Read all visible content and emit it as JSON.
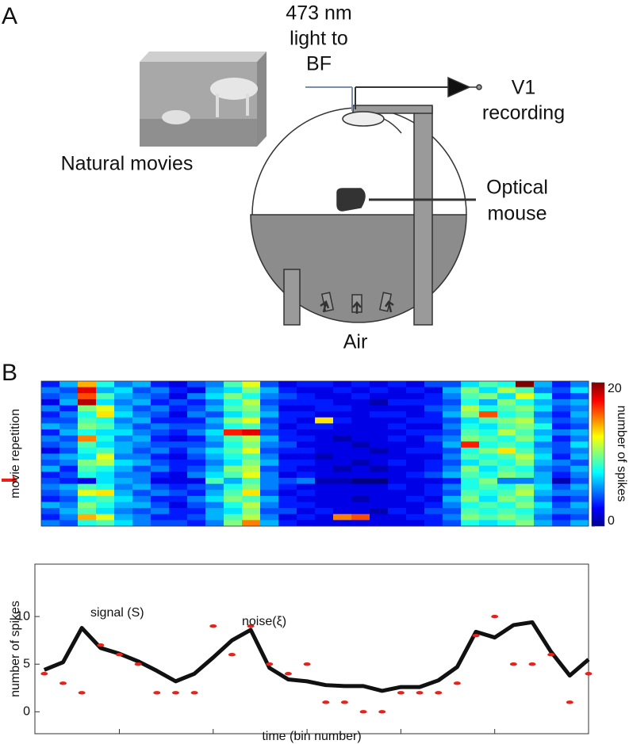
{
  "figure": {
    "panel_a": "A",
    "panel_b": "B"
  },
  "diagram": {
    "light_label": [
      "473 nm",
      "light to",
      "BF"
    ],
    "recording_label": [
      "V1",
      "recording"
    ],
    "movie_label": "Natural movies",
    "mouse_label": [
      "Optical",
      "mouse"
    ],
    "air_label": "Air"
  },
  "chart_data": [
    {
      "type": "heatmap",
      "ylabel": "movie repetition",
      "colorbar_label": "number of spikes",
      "colormap": "jet",
      "zlim": [
        0,
        20
      ],
      "zticks": [
        0,
        20
      ],
      "z": [
        [
          3,
          6,
          14,
          8,
          5,
          6,
          3,
          2,
          4,
          5,
          9,
          12,
          4,
          2,
          3,
          3,
          2,
          3,
          2,
          3,
          2,
          4,
          4,
          7,
          9,
          8,
          20,
          6,
          3,
          5
        ],
        [
          5,
          4,
          18,
          6,
          7,
          4,
          5,
          3,
          2,
          6,
          7,
          10,
          6,
          3,
          2,
          2,
          3,
          2,
          3,
          2,
          3,
          2,
          6,
          10,
          7,
          11,
          9,
          5,
          4,
          7
        ],
        [
          4,
          5,
          16,
          9,
          6,
          5,
          4,
          2,
          5,
          7,
          10,
          8,
          5,
          4,
          3,
          2,
          2,
          3,
          2,
          2,
          2,
          3,
          5,
          9,
          10,
          7,
          12,
          8,
          3,
          4
        ],
        [
          2,
          6,
          19,
          7,
          5,
          6,
          3,
          4,
          3,
          5,
          8,
          11,
          4,
          3,
          3,
          3,
          2,
          2,
          1,
          3,
          3,
          3,
          4,
          8,
          6,
          10,
          8,
          6,
          5,
          6
        ],
        [
          5,
          3,
          10,
          12,
          6,
          4,
          5,
          3,
          4,
          6,
          9,
          10,
          5,
          2,
          2,
          3,
          3,
          2,
          2,
          2,
          2,
          4,
          5,
          11,
          8,
          9,
          10,
          7,
          4,
          5
        ],
        [
          3,
          5,
          8,
          13,
          7,
          5,
          4,
          2,
          5,
          4,
          7,
          9,
          6,
          3,
          3,
          2,
          2,
          2,
          3,
          3,
          2,
          3,
          6,
          10,
          16,
          8,
          9,
          5,
          3,
          6
        ],
        [
          4,
          4,
          9,
          8,
          5,
          6,
          3,
          3,
          3,
          6,
          10,
          12,
          4,
          3,
          2,
          13,
          3,
          2,
          2,
          2,
          3,
          3,
          4,
          7,
          9,
          10,
          11,
          6,
          4,
          5
        ],
        [
          6,
          5,
          10,
          9,
          6,
          4,
          5,
          4,
          4,
          5,
          8,
          9,
          5,
          2,
          3,
          3,
          2,
          2,
          2,
          3,
          2,
          2,
          5,
          8,
          7,
          9,
          10,
          8,
          3,
          4
        ],
        [
          3,
          6,
          8,
          7,
          7,
          5,
          4,
          3,
          5,
          7,
          17,
          18,
          4,
          3,
          2,
          2,
          2,
          2,
          2,
          2,
          3,
          3,
          4,
          9,
          8,
          11,
          9,
          6,
          5,
          6
        ],
        [
          5,
          4,
          15,
          8,
          5,
          6,
          3,
          2,
          3,
          6,
          9,
          11,
          6,
          3,
          3,
          2,
          1,
          2,
          2,
          3,
          2,
          4,
          5,
          10,
          9,
          8,
          10,
          7,
          3,
          5
        ],
        [
          4,
          5,
          9,
          7,
          6,
          5,
          4,
          4,
          4,
          5,
          8,
          10,
          5,
          4,
          2,
          2,
          2,
          1,
          2,
          2,
          2,
          3,
          6,
          17,
          8,
          9,
          8,
          5,
          4,
          7
        ],
        [
          2,
          4,
          8,
          9,
          6,
          4,
          5,
          3,
          5,
          7,
          9,
          12,
          4,
          3,
          3,
          2,
          2,
          2,
          1,
          2,
          3,
          3,
          4,
          8,
          10,
          13,
          9,
          6,
          4,
          5
        ],
        [
          5,
          6,
          7,
          12,
          5,
          5,
          3,
          2,
          4,
          6,
          8,
          9,
          5,
          2,
          2,
          1,
          2,
          2,
          2,
          2,
          2,
          2,
          5,
          9,
          8,
          9,
          11,
          7,
          3,
          6
        ],
        [
          4,
          5,
          10,
          11,
          7,
          6,
          4,
          3,
          3,
          5,
          7,
          10,
          6,
          3,
          3,
          2,
          2,
          1,
          2,
          3,
          2,
          3,
          4,
          7,
          9,
          8,
          10,
          6,
          5,
          4
        ],
        [
          6,
          3,
          9,
          8,
          6,
          4,
          5,
          3,
          4,
          6,
          10,
          11,
          4,
          3,
          2,
          2,
          1,
          2,
          1,
          2,
          2,
          3,
          5,
          10,
          7,
          9,
          8,
          5,
          4,
          6
        ],
        [
          3,
          4,
          8,
          7,
          5,
          5,
          3,
          2,
          5,
          7,
          9,
          12,
          5,
          2,
          3,
          2,
          2,
          2,
          2,
          2,
          3,
          4,
          6,
          9,
          8,
          10,
          9,
          6,
          3,
          5
        ],
        [
          4,
          3,
          2,
          7,
          6,
          5,
          2,
          2,
          2,
          9,
          6,
          9,
          5,
          4,
          5,
          1,
          1,
          0,
          0,
          2,
          2,
          2,
          3,
          8,
          10,
          5,
          5,
          6,
          1,
          4
        ],
        [
          5,
          6,
          9,
          8,
          5,
          6,
          4,
          3,
          4,
          5,
          8,
          10,
          5,
          3,
          2,
          2,
          2,
          2,
          2,
          3,
          2,
          3,
          5,
          8,
          9,
          8,
          10,
          7,
          4,
          6
        ],
        [
          4,
          5,
          12,
          13,
          6,
          4,
          5,
          4,
          3,
          6,
          9,
          13,
          4,
          2,
          3,
          2,
          2,
          2,
          2,
          2,
          2,
          3,
          4,
          9,
          8,
          9,
          11,
          6,
          5,
          5
        ],
        [
          3,
          4,
          8,
          9,
          7,
          5,
          3,
          3,
          5,
          7,
          10,
          9,
          6,
          3,
          2,
          2,
          2,
          1,
          2,
          2,
          3,
          2,
          6,
          10,
          7,
          10,
          9,
          5,
          3,
          4
        ],
        [
          6,
          5,
          10,
          8,
          6,
          6,
          4,
          2,
          4,
          5,
          8,
          11,
          5,
          3,
          3,
          2,
          2,
          2,
          2,
          2,
          2,
          3,
          5,
          8,
          9,
          8,
          10,
          7,
          4,
          6
        ],
        [
          4,
          6,
          9,
          7,
          5,
          4,
          5,
          3,
          3,
          6,
          7,
          10,
          4,
          4,
          2,
          3,
          2,
          2,
          1,
          3,
          2,
          4,
          4,
          9,
          8,
          9,
          8,
          6,
          5,
          5
        ],
        [
          3,
          5,
          14,
          12,
          6,
          5,
          3,
          3,
          4,
          6,
          9,
          11,
          5,
          2,
          3,
          2,
          15,
          16,
          2,
          2,
          3,
          3,
          5,
          10,
          9,
          10,
          9,
          5,
          3,
          4
        ],
        [
          5,
          4,
          8,
          9,
          7,
          5,
          4,
          4,
          3,
          5,
          10,
          15,
          6,
          3,
          2,
          2,
          2,
          2,
          2,
          2,
          2,
          3,
          4,
          8,
          7,
          8,
          10,
          6,
          4,
          6
        ]
      ]
    },
    {
      "type": "line",
      "xlabel": "time (bin number)",
      "ylabel": "number of spikes",
      "x": [
        1,
        2,
        3,
        4,
        5,
        6,
        7,
        8,
        9,
        10,
        11,
        12,
        13,
        14,
        15,
        16,
        17,
        18,
        19,
        20,
        21,
        22,
        23,
        24,
        25,
        26,
        27,
        28,
        29,
        30
      ],
      "xlim": [
        0.5,
        30
      ],
      "xticks": [
        5,
        10,
        15,
        20,
        25
      ],
      "ylim": [
        -2.3,
        15.5
      ],
      "yticks": [
        0,
        5,
        10
      ],
      "series": [
        {
          "name": "signal (S)",
          "color": "#111111",
          "style": "line",
          "values": [
            4.4,
            5.2,
            8.8,
            6.7,
            6.1,
            5.3,
            4.3,
            3.2,
            4,
            5.7,
            7.5,
            8.6,
            4.6,
            3.4,
            3.2,
            2.8,
            2.7,
            2.7,
            2.2,
            2.6,
            2.6,
            3.3,
            4.7,
            8.4,
            7.8,
            9.1,
            9.4,
            6.3,
            3.8,
            5.5
          ]
        },
        {
          "name": "noise(ξ)",
          "color": "#e8221b",
          "style": "markers",
          "values": [
            4,
            3,
            2,
            7,
            6,
            5,
            2,
            2,
            2,
            9,
            6,
            9,
            5,
            4,
            5,
            1,
            1,
            0,
            0,
            2,
            2,
            2,
            3,
            8,
            10,
            5,
            5,
            6,
            1,
            4
          ]
        }
      ]
    }
  ]
}
